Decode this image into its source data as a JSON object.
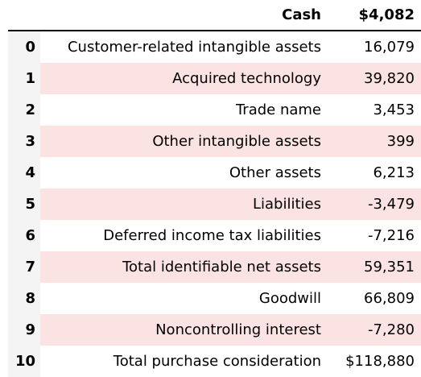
{
  "header": {
    "label": "Cash",
    "value": "$4,082"
  },
  "rows": [
    {
      "index": "0",
      "label": "Customer-related intangible assets",
      "value": "16,079"
    },
    {
      "index": "1",
      "label": "Acquired technology",
      "value": "39,820"
    },
    {
      "index": "2",
      "label": "Trade name",
      "value": "3,453"
    },
    {
      "index": "3",
      "label": "Other intangible assets",
      "value": "399"
    },
    {
      "index": "4",
      "label": "Other assets",
      "value": "6,213"
    },
    {
      "index": "5",
      "label": "Liabilities",
      "value": "-3,479"
    },
    {
      "index": "6",
      "label": "Deferred income tax liabilities",
      "value": "-7,216"
    },
    {
      "index": "7",
      "label": "Total identifiable net assets",
      "value": "59,351"
    },
    {
      "index": "8",
      "label": "Goodwill",
      "value": "66,809"
    },
    {
      "index": "9",
      "label": "Noncontrolling interest",
      "value": "-7,280"
    },
    {
      "index": "10",
      "label": "Total purchase consideration",
      "value": "$118,880"
    }
  ],
  "colors": {
    "stripe": "#fbe3e3",
    "index_bg": "#f4f4f4",
    "rule": "#000000"
  }
}
